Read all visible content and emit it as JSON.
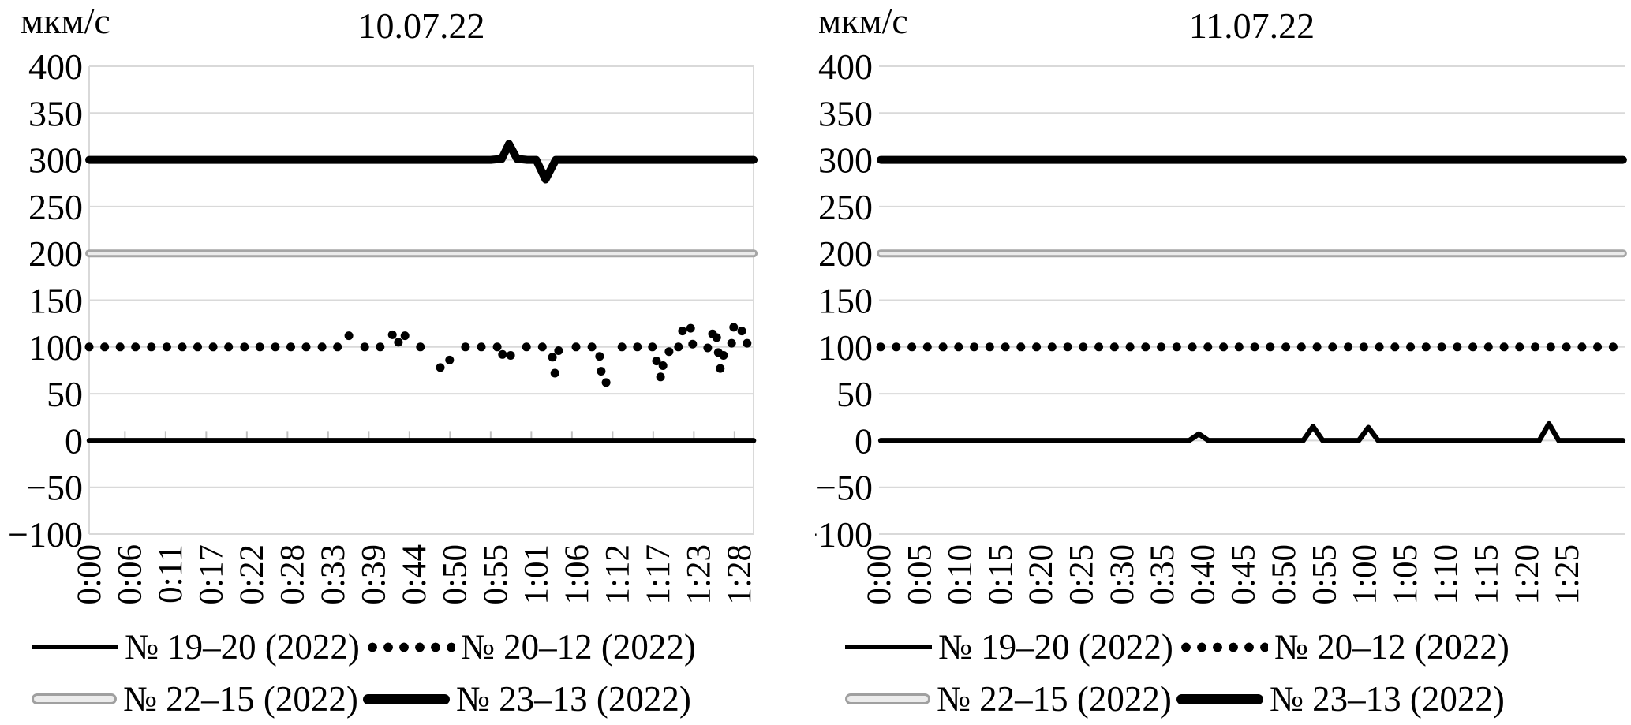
{
  "colors": {
    "series_black": "#000000",
    "series_gray": "#a6a6a6",
    "gridline": "#d9d9d9",
    "axis_tick": "#bfbfbf"
  },
  "chart_data": [
    {
      "type": "line",
      "title": "10.07.22",
      "xlabel": "",
      "ylabel": "мкм/с",
      "ylim": [
        -100,
        400
      ],
      "ytick_step": 50,
      "grid": "horizontal",
      "legend_position": "bottom-left",
      "x_coordinate_unit": "tick_index",
      "x_tick_labels": [
        "0:00",
        "0:06",
        "0:11",
        "0:17",
        "0:22",
        "0:28",
        "0:33",
        "0:39",
        "0:44",
        "0:50",
        "0:55",
        "1:01",
        "1:06",
        "1:12",
        "1:17",
        "1:23",
        "1:28"
      ],
      "y_tick_labels": [
        "400",
        "350",
        "300",
        "250",
        "200",
        "150",
        "100",
        "50",
        "0",
        "−50",
        "−100"
      ],
      "series": [
        {
          "name": "№ 19–20 (2022)",
          "style": "solid-black",
          "points_u": [
            [
              0.02,
              0
            ],
            [
              16.37,
              0
            ]
          ]
        },
        {
          "name": "№ 20–12 (2022)",
          "style": "dotted-black",
          "dots_u": [
            [
              0.02,
              100
            ],
            [
              0.4,
              100
            ],
            [
              0.78,
              100
            ],
            [
              1.16,
              100
            ],
            [
              1.55,
              100
            ],
            [
              1.93,
              100
            ],
            [
              2.31,
              100
            ],
            [
              2.69,
              100
            ],
            [
              3.07,
              100
            ],
            [
              3.45,
              100
            ],
            [
              3.84,
              100
            ],
            [
              4.22,
              100
            ],
            [
              4.6,
              100
            ],
            [
              4.98,
              100
            ],
            [
              5.36,
              100
            ],
            [
              5.75,
              100
            ],
            [
              6.13,
              100
            ],
            [
              6.41,
              112
            ],
            [
              6.8,
              100
            ],
            [
              7.18,
              100
            ],
            [
              7.48,
              113
            ],
            [
              7.63,
              105
            ],
            [
              7.79,
              112
            ],
            [
              8.17,
              100
            ],
            [
              8.66,
              78
            ],
            [
              8.89,
              86
            ],
            [
              9.28,
              100
            ],
            [
              9.67,
              100
            ],
            [
              10.06,
              100
            ],
            [
              10.19,
              92
            ],
            [
              10.39,
              91
            ],
            [
              10.78,
              100
            ],
            [
              11.17,
              100
            ],
            [
              11.42,
              89
            ],
            [
              11.48,
              72
            ],
            [
              11.57,
              96
            ],
            [
              12.0,
              100
            ],
            [
              12.39,
              100
            ],
            [
              12.58,
              90
            ],
            [
              12.62,
              74
            ],
            [
              12.74,
              62
            ],
            [
              13.13,
              100
            ],
            [
              13.51,
              100
            ],
            [
              13.88,
              100
            ],
            [
              13.98,
              85
            ],
            [
              14.08,
              68
            ],
            [
              14.14,
              80
            ],
            [
              14.29,
              95
            ],
            [
              14.52,
              100
            ],
            [
              14.62,
              117
            ],
            [
              14.82,
              120
            ],
            [
              14.87,
              103
            ],
            [
              15.24,
              99
            ],
            [
              15.36,
              114
            ],
            [
              15.46,
              110
            ],
            [
              15.5,
              94
            ],
            [
              15.55,
              77
            ],
            [
              15.63,
              91
            ],
            [
              15.83,
              104
            ],
            [
              15.88,
              121
            ],
            [
              16.08,
              117
            ],
            [
              16.21,
              104
            ]
          ]
        },
        {
          "name": "№ 22–15 (2022)",
          "style": "gray-tube",
          "points_u": [
            [
              0.02,
              200
            ],
            [
              16.37,
              200
            ]
          ]
        },
        {
          "name": "№ 23–13 (2022)",
          "style": "thick-black",
          "points_u": [
            [
              0.02,
              300
            ],
            [
              9.9,
              300
            ],
            [
              10.17,
              301
            ],
            [
              10.35,
              317
            ],
            [
              10.55,
              301
            ],
            [
              10.8,
              300
            ],
            [
              11.02,
              300
            ],
            [
              11.25,
              279
            ],
            [
              11.5,
              300
            ],
            [
              16.37,
              300
            ]
          ]
        }
      ]
    },
    {
      "type": "line",
      "title": "11.07.22",
      "xlabel": "",
      "ylabel": "мкм/с",
      "ylim": [
        -100,
        400
      ],
      "ytick_step": 50,
      "grid": "horizontal",
      "legend_position": "bottom-left",
      "x_coordinate_unit": "tick_index",
      "x_tick_labels": [
        "0:00",
        "0:05",
        "0:10",
        "0:15",
        "0:20",
        "0:25",
        "0:30",
        "0:35",
        "0:40",
        "0:45",
        "0:50",
        "0:55",
        "1:00",
        "1:05",
        "1:10",
        "1:15",
        "1:20",
        "1:25"
      ],
      "y_tick_labels": [
        "400",
        "350",
        "300",
        "250",
        "200",
        "150",
        "100",
        "50",
        "0",
        "−50",
        "−100"
      ],
      "series": [
        {
          "name": "№ 19–20 (2022)",
          "style": "solid-black",
          "points_u": [
            [
              0.06,
              0
            ],
            [
              7.68,
              0
            ],
            [
              7.92,
              7
            ],
            [
              8.16,
              0
            ],
            [
              10.5,
              0
            ],
            [
              10.74,
              15
            ],
            [
              10.98,
              0
            ],
            [
              11.87,
              0
            ],
            [
              12.11,
              14
            ],
            [
              12.35,
              0
            ],
            [
              16.33,
              0
            ],
            [
              16.57,
              18
            ],
            [
              16.81,
              0
            ],
            [
              18.4,
              0
            ]
          ]
        },
        {
          "name": "№ 20–12 (2022)",
          "style": "dotted-black",
          "dots_uniform": {
            "from": 0.06,
            "to": 18.35,
            "step": 0.385,
            "value": 100
          }
        },
        {
          "name": "№ 22–15 (2022)",
          "style": "gray-tube",
          "points_u": [
            [
              0.06,
              200
            ],
            [
              18.4,
              200
            ]
          ]
        },
        {
          "name": "№ 23–13 (2022)",
          "style": "thick-black",
          "points_u": [
            [
              0.06,
              300
            ],
            [
              18.4,
              300
            ]
          ]
        }
      ]
    }
  ]
}
